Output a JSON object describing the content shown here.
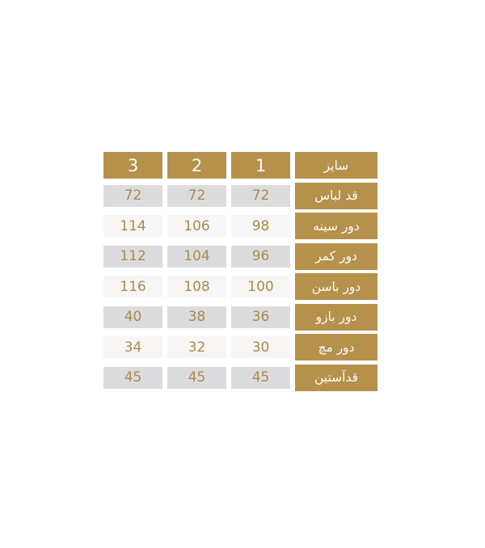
{
  "colors": {
    "page_bg": "#ffffff",
    "gold": "#b6914c",
    "header_text": "#fbfaf7",
    "value_text": "#ab8a4c",
    "row_gray": "#dcdcde",
    "row_light": "#f7f6f4"
  },
  "chart_data": {
    "type": "table",
    "title": "",
    "direction": "rtl",
    "language": "fa",
    "description_semantic": "garment size chart (sizes 1-3, measurements in cm)",
    "header": {
      "label": "سایز",
      "sizes": [
        "1",
        "2",
        "3"
      ]
    },
    "rows": [
      {
        "label": "قد لباس",
        "values": [
          "72",
          "72",
          "72"
        ]
      },
      {
        "label": "دور سینه",
        "values": [
          "98",
          "106",
          "114"
        ]
      },
      {
        "label": "دور کمر",
        "values": [
          "96",
          "104",
          "112"
        ]
      },
      {
        "label": "دور باسن",
        "values": [
          "100",
          "108",
          "116"
        ]
      },
      {
        "label": "دور بازو",
        "values": [
          "36",
          "38",
          "40"
        ]
      },
      {
        "label": "دور مچ",
        "values": [
          "30",
          "32",
          "34"
        ]
      },
      {
        "label": "قدآستین",
        "values": [
          "45",
          "45",
          "45"
        ]
      }
    ]
  }
}
